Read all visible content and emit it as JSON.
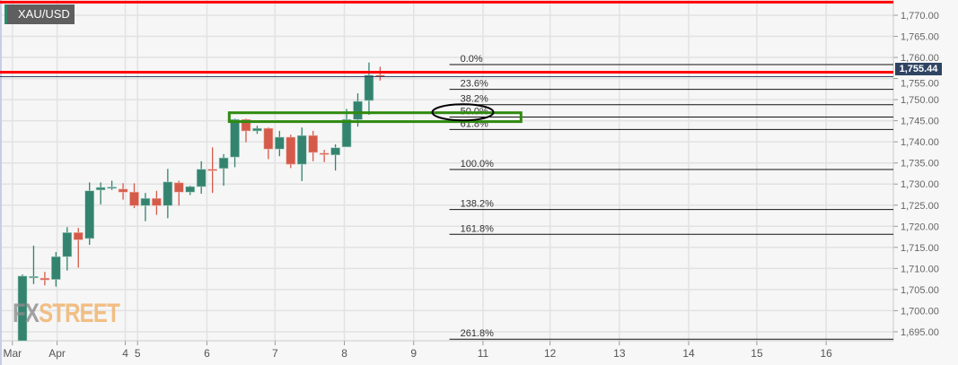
{
  "symbol": "XAU/USD",
  "current_price_label": "1,755.44",
  "logo": {
    "fx": "FX",
    "street": "STREET"
  },
  "colors": {
    "up": "#33836f",
    "down": "#d55a49",
    "red_line": "#ff0000",
    "green_box": "#2f8a10",
    "price_tag": "#2f4463"
  },
  "chart_data": {
    "type": "candlestick",
    "title": "XAU/USD",
    "ylim": [
      1693,
      1773.5
    ],
    "yticks": [
      1770,
      1765,
      1760,
      1755,
      1750,
      1745,
      1740,
      1735,
      1730,
      1725,
      1720,
      1715,
      1710,
      1705,
      1700,
      1695
    ],
    "ytick_labels": [
      "1,770.00",
      "1,765.00",
      "1,760.00",
      "1,755.00",
      "1,750.00",
      "1,745.00",
      "1,740.00",
      "1,735.00",
      "1,730.00",
      "1,725.00",
      "1,720.00",
      "1,715.00",
      "1,710.00",
      "1,705.00",
      "1,700.00",
      "1,695.00"
    ],
    "xticks": [
      {
        "label": "Mar",
        "bar": -0.9
      },
      {
        "label": "Apr",
        "bar": 3.1
      },
      {
        "label": "4",
        "bar": 9.2
      },
      {
        "label": "5",
        "bar": 10.3
      },
      {
        "label": "6",
        "bar": 16.5
      },
      {
        "label": "7",
        "bar": 22.6
      },
      {
        "label": "8",
        "bar": 28.8
      },
      {
        "label": "9",
        "bar": 35
      },
      {
        "label": "11",
        "bar": 41.2
      },
      {
        "label": "12",
        "bar": 47.2
      },
      {
        "label": "13",
        "bar": 53.4
      },
      {
        "label": "14",
        "bar": 59.6
      },
      {
        "label": "15",
        "bar": 65.7
      },
      {
        "label": "16",
        "bar": 71.9
      }
    ],
    "candles": [
      [
        1690,
        1708.6,
        1690,
        1708.2
      ],
      [
        1708,
        1715.4,
        1706.3,
        1708.1
      ],
      [
        1707.7,
        1709.2,
        1706,
        1707.3
      ],
      [
        1707.4,
        1713.9,
        1705.7,
        1712.8
      ],
      [
        1712.8,
        1719.8,
        1709.5,
        1718.5
      ],
      [
        1718.5,
        1719.6,
        1710.2,
        1716.8
      ],
      [
        1717.1,
        1730.4,
        1715.6,
        1728.4
      ],
      [
        1728.6,
        1730.4,
        1725.2,
        1729.2
      ],
      [
        1729.1,
        1730.8,
        1728.6,
        1729.3
      ],
      [
        1728.8,
        1730.2,
        1726.3,
        1728.1
      ],
      [
        1728.1,
        1730.2,
        1724.3,
        1724.9
      ],
      [
        1724.9,
        1727.9,
        1721.2,
        1726.6
      ],
      [
        1726.6,
        1728.4,
        1722.7,
        1724.9
      ],
      [
        1724.9,
        1733.6,
        1721.9,
        1730.5
      ],
      [
        1730.3,
        1730.8,
        1724.9,
        1728.1
      ],
      [
        1728.1,
        1729.6,
        1727.4,
        1729.4
      ],
      [
        1729.4,
        1735.4,
        1727.7,
        1733.5
      ],
      [
        1733.5,
        1738.7,
        1727.9,
        1733.3
      ],
      [
        1733.7,
        1737.1,
        1729.6,
        1736.2
      ],
      [
        1736.4,
        1745.5,
        1734,
        1745.3
      ],
      [
        1745.3,
        1745.5,
        1739.9,
        1742.6
      ],
      [
        1742.6,
        1743.8,
        1741.9,
        1743.2
      ],
      [
        1743.2,
        1743.4,
        1735.9,
        1738.3
      ],
      [
        1738.3,
        1742.6,
        1736.6,
        1741.1
      ],
      [
        1741.1,
        1741.7,
        1733.8,
        1734.7
      ],
      [
        1734.7,
        1743.4,
        1730.7,
        1741.5
      ],
      [
        1741.5,
        1742.6,
        1735.4,
        1737.5
      ],
      [
        1737.3,
        1738.1,
        1735.2,
        1737
      ],
      [
        1736.9,
        1739.4,
        1733.2,
        1738.6
      ],
      [
        1738.8,
        1747.8,
        1738.8,
        1745.3
      ],
      [
        1745.3,
        1751.5,
        1743.6,
        1749.6
      ],
      [
        1749.8,
        1758.8,
        1746.4,
        1755.8
      ],
      [
        1755.8,
        1757.8,
        1754.5,
        1755.5
      ]
    ],
    "current_price": 1755.44,
    "horizontal_lines": [
      1773.1,
      1756.5
    ],
    "fibonacci": {
      "start_price": 1758.3,
      "end_price": 1733.45,
      "from_bar": 38.2,
      "levels": [
        {
          "ratio": 0,
          "label": "0.0%"
        },
        {
          "ratio": 0.236,
          "label": "23.6%"
        },
        {
          "ratio": 0.382,
          "label": "38.2%"
        },
        {
          "ratio": 0.5,
          "label": "50.0%"
        },
        {
          "ratio": 0.618,
          "label": "61.8%"
        },
        {
          "ratio": 1,
          "label": "100.0%"
        },
        {
          "ratio": 1.382,
          "label": "138.2%"
        },
        {
          "ratio": 1.618,
          "label": "161.8%"
        },
        {
          "ratio": 2.618,
          "label": "261.8%"
        }
      ]
    },
    "zone_box": {
      "from_bar": 18.5,
      "to_bar": 44.6,
      "top": 1746.9,
      "bottom": 1744.8
    },
    "ellipse": {
      "bar": 39.4,
      "price": 1747
    }
  }
}
